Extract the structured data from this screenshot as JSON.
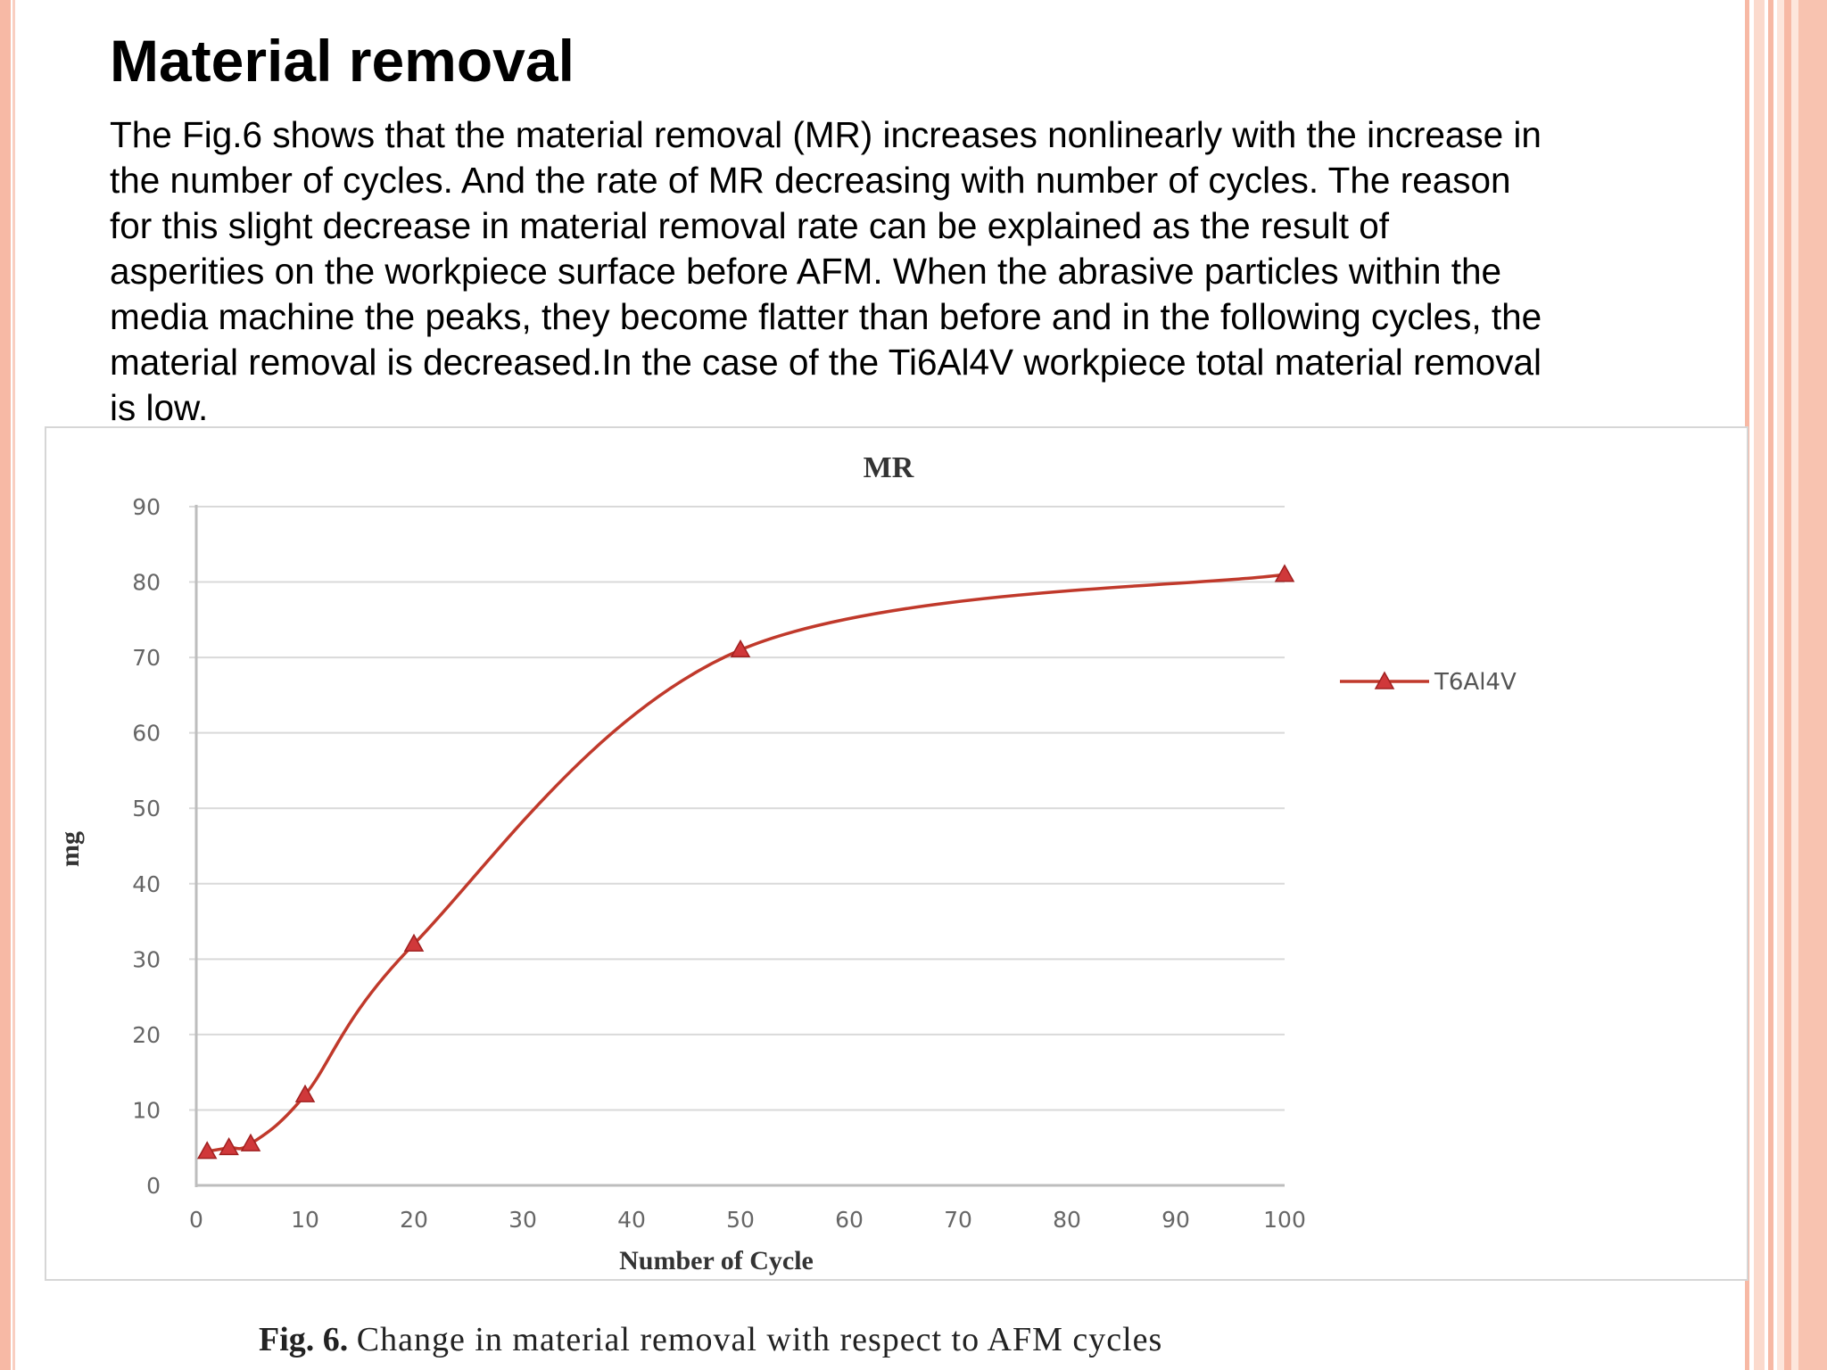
{
  "slide": {
    "title": "Material removal",
    "body": "The Fig.6 shows that the material removal (MR) increases nonlinearly with the increase in the number of cycles. And the rate of MR decreasing with number of cycles. The reason for this slight decrease in material removal rate can be explained as the result of asperities on the workpiece surface before AFM. When the abrasive particles within the media machine the peaks, they become flatter than before and in the following cycles, the material removal is decreased.In the case of the Ti6Al4V workpiece total material removal is low."
  },
  "caption": {
    "label": "Fig. 6.",
    "text": "Change in material removal with respect to AFM cycles"
  },
  "chart_data": {
    "type": "line",
    "title": "MR",
    "xlabel": "Number of Cycle",
    "ylabel": "mg",
    "xlim": [
      0,
      100
    ],
    "ylim": [
      0,
      90
    ],
    "xticks": [
      "0",
      "10",
      "20",
      "30",
      "40",
      "50",
      "60",
      "70",
      "80",
      "90",
      "100"
    ],
    "yticks": [
      "0",
      "10",
      "20",
      "30",
      "40",
      "50",
      "60",
      "70",
      "80",
      "90"
    ],
    "grid": true,
    "smooth": true,
    "legend_position": "right",
    "series": [
      {
        "name": "T6Al4V",
        "color": "#c0392b",
        "marker": "triangle",
        "x": [
          1,
          3,
          5,
          10,
          20,
          50,
          100
        ],
        "y": [
          4.5,
          5,
          5.5,
          12,
          32,
          71,
          81
        ]
      }
    ]
  }
}
